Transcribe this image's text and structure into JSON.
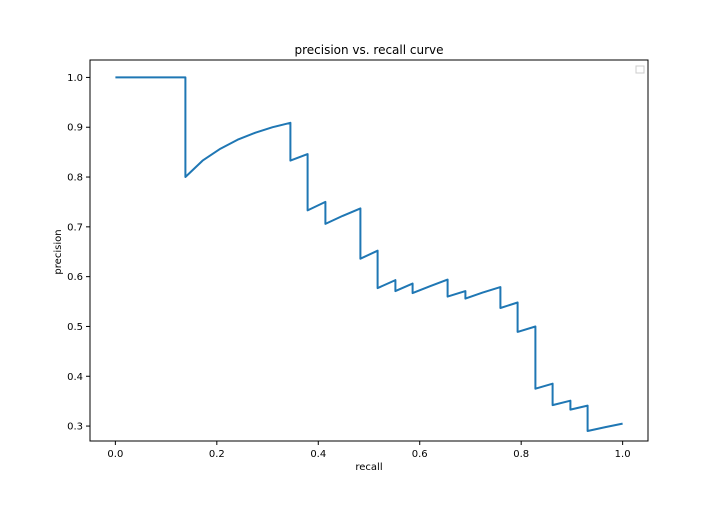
{
  "chart_data": {
    "type": "line",
    "title": "precision vs. recall curve",
    "xlabel": "recall",
    "ylabel": "precision",
    "xlim": [
      -0.05,
      1.05
    ],
    "ylim": [
      0.27,
      1.035
    ],
    "xticks": [
      0.0,
      0.2,
      0.4,
      0.6,
      0.8,
      1.0
    ],
    "xtick_labels": [
      "0.0",
      "0.2",
      "0.4",
      "0.6",
      "0.8",
      "1.0"
    ],
    "yticks": [
      0.3,
      0.4,
      0.5,
      0.6,
      0.7,
      0.8,
      0.9,
      1.0
    ],
    "ytick_labels": [
      "0.3",
      "0.4",
      "0.5",
      "0.6",
      "0.7",
      "0.8",
      "0.9",
      "1.0"
    ],
    "grid": false,
    "legend": {
      "placement": "top-right",
      "entries": []
    },
    "series": [
      {
        "color": "#1f77b4",
        "x": [
          0.0,
          0.138,
          0.138,
          0.172,
          0.207,
          0.241,
          0.276,
          0.31,
          0.345,
          0.345,
          0.379,
          0.379,
          0.414,
          0.414,
          0.448,
          0.483,
          0.483,
          0.517,
          0.517,
          0.552,
          0.552,
          0.586,
          0.586,
          0.621,
          0.655,
          0.655,
          0.69,
          0.69,
          0.724,
          0.759,
          0.759,
          0.793,
          0.793,
          0.828,
          0.828,
          0.862,
          0.862,
          0.897,
          0.897,
          0.931,
          0.931,
          0.966,
          1.0
        ],
        "y": [
          1.0,
          1.0,
          0.8,
          0.833,
          0.857,
          0.875,
          0.889,
          0.9,
          0.909,
          0.833,
          0.846,
          0.733,
          0.75,
          0.706,
          0.722,
          0.737,
          0.636,
          0.652,
          0.577,
          0.593,
          0.571,
          0.586,
          0.567,
          0.581,
          0.594,
          0.56,
          0.571,
          0.556,
          0.568,
          0.579,
          0.537,
          0.548,
          0.489,
          0.5,
          0.375,
          0.385,
          0.342,
          0.351,
          0.333,
          0.341,
          0.29,
          0.298,
          0.305
        ]
      }
    ]
  }
}
